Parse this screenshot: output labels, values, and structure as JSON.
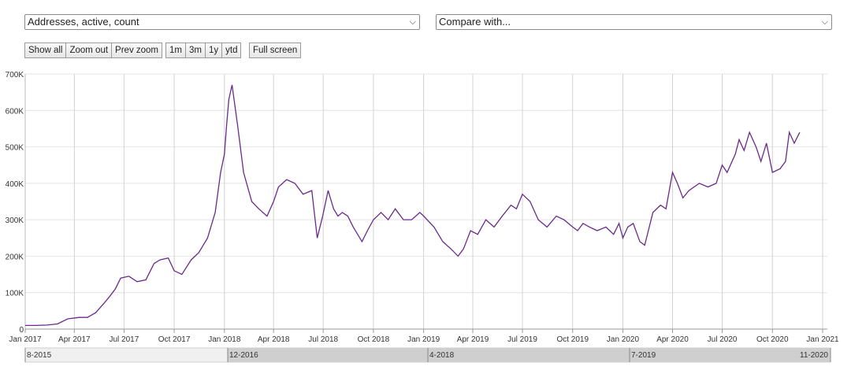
{
  "controls": {
    "metric_select": "Addresses, active, count",
    "compare_select": "Compare with...",
    "zoom_buttons": [
      "Show all",
      "Zoom out",
      "Prev zoom"
    ],
    "range_buttons": [
      "1m",
      "3m",
      "1y",
      "ytd"
    ],
    "fullscreen_button": "Full screen"
  },
  "chart_data": {
    "type": "line",
    "title": "",
    "xlabel": "",
    "ylabel": "",
    "xlim": [
      "2017-01-01",
      "2021-01-01"
    ],
    "ylim": [
      0,
      700000
    ],
    "grid": true,
    "line_color": "#6a2a8a",
    "x_tick_labels": [
      "Jan 2017",
      "Apr 2017",
      "Jul 2017",
      "Oct 2017",
      "Jan 2018",
      "Apr 2018",
      "Jul 2018",
      "Oct 2018",
      "Jan 2019",
      "Apr 2019",
      "Jul 2019",
      "Oct 2019",
      "Jan 2020",
      "Apr 2020",
      "Jul 2020",
      "Oct 2020",
      "Jan 2021"
    ],
    "x_tick_dates": [
      "2017-01-01",
      "2017-04-01",
      "2017-07-01",
      "2017-10-01",
      "2018-01-01",
      "2018-04-01",
      "2018-07-01",
      "2018-10-01",
      "2019-01-01",
      "2019-04-01",
      "2019-07-01",
      "2019-10-01",
      "2020-01-01",
      "2020-04-01",
      "2020-07-01",
      "2020-10-01",
      "2021-01-01"
    ],
    "y_tick_labels": [
      "0",
      "100K",
      "200K",
      "300K",
      "400K",
      "500K",
      "600K",
      "700K"
    ],
    "y_tick_values": [
      0,
      100000,
      200000,
      300000,
      400000,
      500000,
      600000,
      700000
    ],
    "series": [
      {
        "x": [
          "2017-01-01",
          "2017-01-20",
          "2017-02-10",
          "2017-03-01",
          "2017-03-20",
          "2017-04-10",
          "2017-04-25",
          "2017-05-10",
          "2017-05-25",
          "2017-06-05",
          "2017-06-15",
          "2017-06-25",
          "2017-07-10",
          "2017-07-25",
          "2017-08-10",
          "2017-08-25",
          "2017-09-05",
          "2017-09-20",
          "2017-10-01",
          "2017-10-15",
          "2017-11-01",
          "2017-11-15",
          "2017-12-01",
          "2017-12-15",
          "2017-12-25",
          "2018-01-01",
          "2018-01-05",
          "2018-01-09",
          "2018-01-15",
          "2018-01-25",
          "2018-02-05",
          "2018-02-20",
          "2018-03-05",
          "2018-03-20",
          "2018-04-01",
          "2018-04-10",
          "2018-04-25",
          "2018-05-10",
          "2018-05-25",
          "2018-06-10",
          "2018-06-20",
          "2018-06-30",
          "2018-07-10",
          "2018-07-20",
          "2018-07-28",
          "2018-08-05",
          "2018-08-15",
          "2018-08-25",
          "2018-09-10",
          "2018-09-20",
          "2018-10-01",
          "2018-10-15",
          "2018-10-28",
          "2018-11-10",
          "2018-11-25",
          "2018-12-10",
          "2018-12-25",
          "2019-01-01",
          "2019-01-20",
          "2019-02-05",
          "2019-02-20",
          "2019-03-05",
          "2019-03-15",
          "2019-03-28",
          "2019-04-10",
          "2019-04-25",
          "2019-05-10",
          "2019-05-25",
          "2019-06-10",
          "2019-06-20",
          "2019-07-01",
          "2019-07-15",
          "2019-07-30",
          "2019-08-15",
          "2019-09-01",
          "2019-09-15",
          "2019-10-01",
          "2019-10-10",
          "2019-10-20",
          "2019-11-01",
          "2019-11-15",
          "2019-12-01",
          "2019-12-15",
          "2019-12-25",
          "2020-01-01",
          "2020-01-10",
          "2020-01-20",
          "2020-02-01",
          "2020-02-10",
          "2020-02-25",
          "2020-03-10",
          "2020-03-20",
          "2020-04-01",
          "2020-04-10",
          "2020-04-20",
          "2020-05-01",
          "2020-05-20",
          "2020-06-05",
          "2020-06-20",
          "2020-07-01",
          "2020-07-10",
          "2020-07-25",
          "2020-08-01",
          "2020-08-10",
          "2020-08-20",
          "2020-09-01",
          "2020-09-10",
          "2020-09-20",
          "2020-10-01",
          "2020-10-15",
          "2020-10-25",
          "2020-11-01",
          "2020-11-10",
          "2020-11-20"
        ],
        "values": [
          10000,
          10000,
          11000,
          14000,
          28000,
          32000,
          32000,
          45000,
          70000,
          90000,
          110000,
          140000,
          145000,
          130000,
          135000,
          180000,
          190000,
          195000,
          160000,
          150000,
          190000,
          210000,
          250000,
          320000,
          430000,
          480000,
          560000,
          630000,
          670000,
          560000,
          430000,
          350000,
          330000,
          310000,
          350000,
          390000,
          410000,
          400000,
          370000,
          380000,
          250000,
          310000,
          380000,
          330000,
          310000,
          320000,
          310000,
          280000,
          240000,
          270000,
          300000,
          320000,
          300000,
          330000,
          300000,
          300000,
          320000,
          310000,
          280000,
          240000,
          220000,
          200000,
          220000,
          270000,
          260000,
          300000,
          280000,
          310000,
          340000,
          330000,
          370000,
          350000,
          300000,
          280000,
          310000,
          300000,
          280000,
          270000,
          290000,
          280000,
          270000,
          280000,
          260000,
          290000,
          250000,
          280000,
          290000,
          240000,
          230000,
          320000,
          340000,
          330000,
          430000,
          400000,
          360000,
          380000,
          400000,
          390000,
          400000,
          450000,
          430000,
          480000,
          520000,
          490000,
          540000,
          500000,
          460000,
          510000,
          430000,
          440000,
          460000,
          540000,
          510000,
          540000
        ]
      }
    ],
    "navigator_labels": [
      "8-2015",
      "12-2016",
      "4-2018",
      "7-2019",
      "11-2020"
    ]
  }
}
